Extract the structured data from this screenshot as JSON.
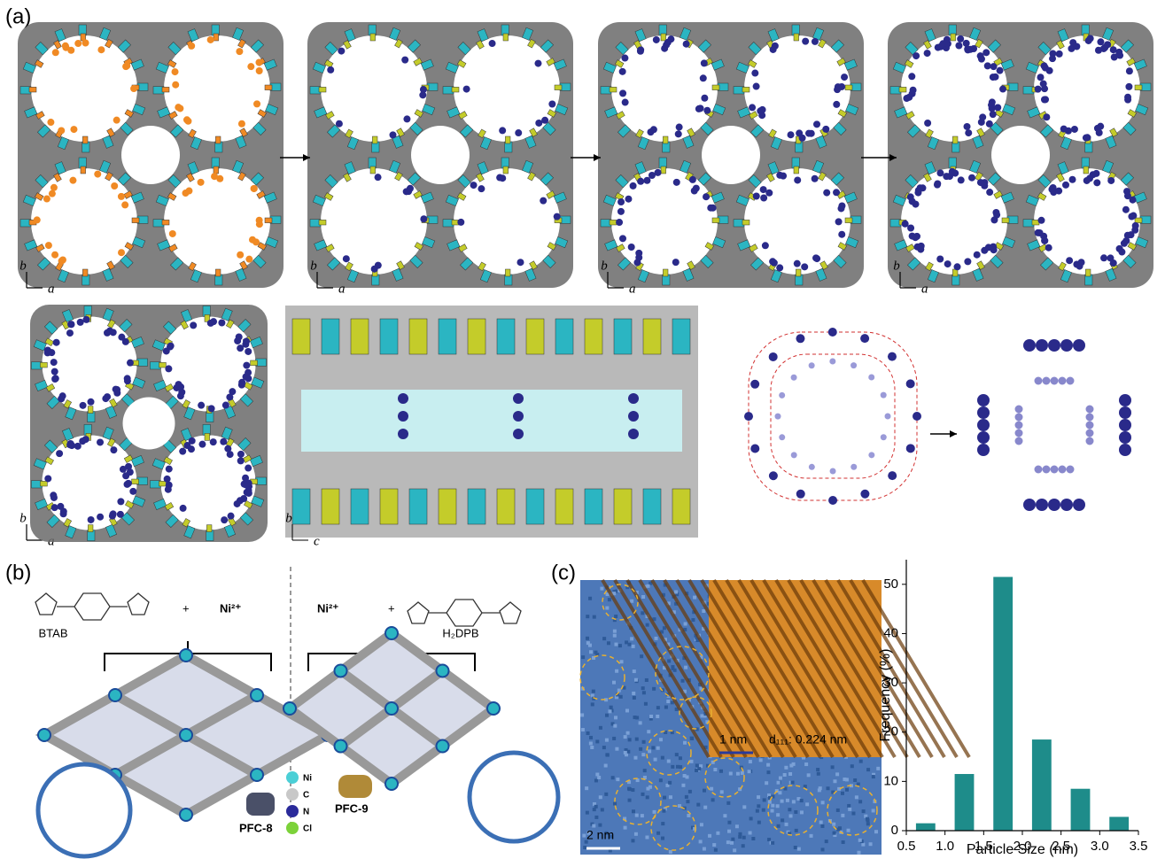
{
  "panels": {
    "a": {
      "label": "(a)",
      "axes": [
        [
          "b",
          "a"
        ],
        [
          "b",
          "a"
        ],
        [
          "b",
          "a"
        ],
        [
          "b",
          "a"
        ],
        [
          "b",
          "a"
        ],
        [
          "b",
          "c"
        ]
      ]
    },
    "b": {
      "label": "(b)",
      "linker1": "BTAB",
      "linker2": "H₂DPB",
      "metal1": "Ni²⁺",
      "metal2": "Ni²⁺",
      "plus": "+",
      "product1": "PFC-8",
      "product2": "PFC-9",
      "legend": [
        "Ni",
        "C",
        "N",
        "Cl"
      ]
    },
    "c": {
      "label": "(c)",
      "scale_inset": "1 nm",
      "spacing": "d₁₁₁: 0.224 nm",
      "scale_main": "2 nm"
    }
  },
  "chart_data": {
    "type": "bar",
    "x": [
      0.75,
      1.25,
      1.75,
      2.25,
      2.75,
      3.25
    ],
    "values": [
      1.5,
      11.5,
      51.5,
      18.5,
      8.5,
      2.8
    ],
    "color": "#1e8c8a",
    "xlabel": "Particle Size (nm)",
    "ylabel": "Frequency (%)",
    "xlim": [
      0.5,
      3.5
    ],
    "xticks": [
      0.5,
      {
        "value": 1,
        "label": "1.0"
      },
      1.5,
      {
        "value": 2,
        "label": "2.0"
      },
      2.5,
      {
        "value": 3,
        "label": "3.0"
      },
      3.5
    ],
    "ylim": [
      0,
      55
    ],
    "yticks": [
      0,
      10,
      20,
      30,
      40,
      50
    ]
  }
}
